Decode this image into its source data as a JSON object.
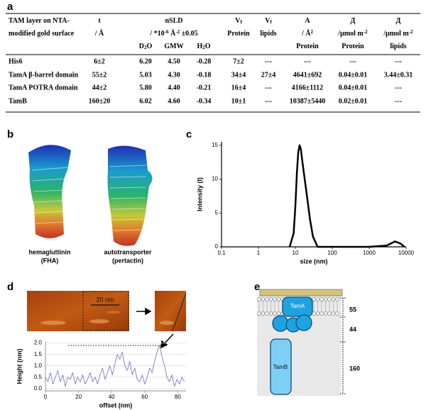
{
  "panels": [
    "a",
    "b",
    "c",
    "d",
    "e"
  ],
  "table": {
    "header": [
      [
        [
          "TAM layer on NTA-"
        ],
        [
          "t"
        ],
        null,
        [
          "nSLD"
        ],
        null,
        [
          "V",
          {
            "sub": "f"
          }
        ],
        [
          "V",
          {
            "sub": "f"
          }
        ],
        [
          "A"
        ],
        [
          "Д"
        ],
        [
          "Д"
        ]
      ],
      [
        [
          "modified gold surface"
        ],
        [
          "/ Å"
        ],
        null,
        [
          "/ *10",
          {
            "sup": "-6"
          },
          " Å",
          {
            "sup": "-2"
          },
          " ±0.05"
        ],
        null,
        [
          "Protein"
        ],
        [
          "lipids"
        ],
        [
          "/ Å",
          {
            "sup": "2"
          }
        ],
        [
          "/μmol m",
          {
            "sup": "-2"
          }
        ],
        [
          "/μmol m",
          {
            "sup": "-2"
          }
        ]
      ],
      [
        null,
        null,
        [
          "D",
          {
            "sub": "2"
          },
          "O"
        ],
        [
          "GMW"
        ],
        [
          "H",
          {
            "sub": "2"
          },
          "O"
        ],
        null,
        null,
        [
          "Protein"
        ],
        [
          "Protein"
        ],
        [
          "lipids"
        ]
      ]
    ],
    "rows": [
      [
        "His6",
        "6±2",
        "6.20",
        "4.50",
        "-0.28",
        "7±2",
        "---",
        "---",
        "---",
        "---"
      ],
      [
        "TamA β-barrel domain",
        "55±2",
        "5.03",
        "4.30",
        "-0.18",
        "34±4",
        "27±4",
        "4641±692",
        "0.04±0.01",
        "3.44±0.31"
      ],
      [
        "TamA POTRA domain",
        "44±2",
        "5.80",
        "4.40",
        "-0.21",
        "16±4",
        "---",
        "4166±1112",
        "0.04±0.01",
        "---"
      ],
      [
        "TamB",
        "160±20",
        "6.02",
        "4.60",
        "-0.34",
        "10±1",
        "---",
        "10387±5440",
        "0.02±0.01",
        "---"
      ]
    ]
  },
  "panel_b": {
    "captions": [
      [
        "hemagluttinin",
        "(FHA)"
      ],
      [
        "autotransporter",
        "(pertactin)"
      ]
    ]
  },
  "chart_data": [
    {
      "type": "line",
      "xlabel": "size (nm)",
      "ylabel": "Intensity (I)",
      "xscale": "log",
      "grid": false,
      "xlim": [
        0.1,
        10000
      ],
      "xticks": [
        0.1,
        1,
        10,
        100,
        1000,
        10000
      ],
      "ylim": [
        0,
        15.5
      ],
      "yticks": [
        0,
        5,
        10,
        15
      ],
      "x": [
        7,
        9,
        10,
        11,
        12,
        13,
        14,
        16,
        20,
        25,
        30,
        40,
        1000,
        3000,
        5000,
        7000,
        9000
      ],
      "series": [
        {
          "color": "#000000",
          "values": [
            0,
            2,
            6,
            11,
            14,
            15,
            14.5,
            12,
            8,
            4,
            1.5,
            0,
            0,
            0.2,
            0.8,
            0.5,
            0
          ]
        }
      ]
    },
    {
      "type": "line",
      "xlabel": "offset (nm)",
      "ylabel": "Height (nm)",
      "grid": true,
      "xlim": [
        0,
        85
      ],
      "xticks": [
        0,
        20,
        40,
        60,
        80
      ],
      "ylim": [
        -0.1,
        2.05
      ],
      "yticks": [
        {
          "value": 0,
          "label": "0.0"
        },
        {
          "value": 0.5,
          "label": "0.5"
        },
        {
          "value": 1,
          "label": "1.0"
        },
        {
          "value": 1.5,
          "label": "1.5"
        },
        {
          "value": 2,
          "label": "2.0"
        }
      ],
      "x": [
        0,
        1.5,
        3,
        4.5,
        6,
        7.5,
        9,
        10.5,
        12,
        13.5,
        15,
        16.5,
        18,
        19.5,
        21,
        22.5,
        24,
        25.5,
        27,
        28.5,
        30,
        31.5,
        33,
        34.5,
        36,
        37.5,
        39,
        40.5,
        42,
        43.5,
        45,
        46.5,
        48,
        49.5,
        51,
        52.5,
        54,
        55.5,
        57,
        58.5,
        60,
        61.5,
        63,
        64.5,
        66,
        67.5,
        69,
        70.5,
        72,
        73.5,
        75,
        76.5,
        78,
        79.5,
        81,
        82.5,
        84
      ],
      "series": [
        {
          "color": "#7b7bc8",
          "values": [
            0.5,
            0.3,
            0.7,
            0.2,
            0.5,
            0.8,
            0.3,
            0.6,
            0.1,
            0.5,
            0.4,
            0.7,
            0.2,
            0.5,
            0.3,
            0.6,
            0.2,
            0.4,
            0.7,
            0.3,
            0.5,
            0.2,
            0.6,
            0.9,
            0.4,
            0.7,
            1.0,
            0.6,
            1.1,
            1.5,
            1.3,
            1.6,
            1.0,
            0.8,
            1.2,
            0.6,
            0.9,
            0.4,
            0.3,
            0.6,
            0.2,
            0.5,
            0.9,
            0.7,
            1.2,
            1.6,
            1.9,
            1.4,
            1.0,
            0.5,
            0.3,
            0.6,
            0.1,
            0.4,
            0.2,
            0.5,
            0.3
          ]
        }
      ]
    }
  ],
  "panel_d": {
    "scale_bar": "20 nm"
  },
  "panel_e": {
    "labels": [
      "TamA",
      "TamB"
    ],
    "dimensions": [
      "55",
      "44",
      "160"
    ]
  }
}
